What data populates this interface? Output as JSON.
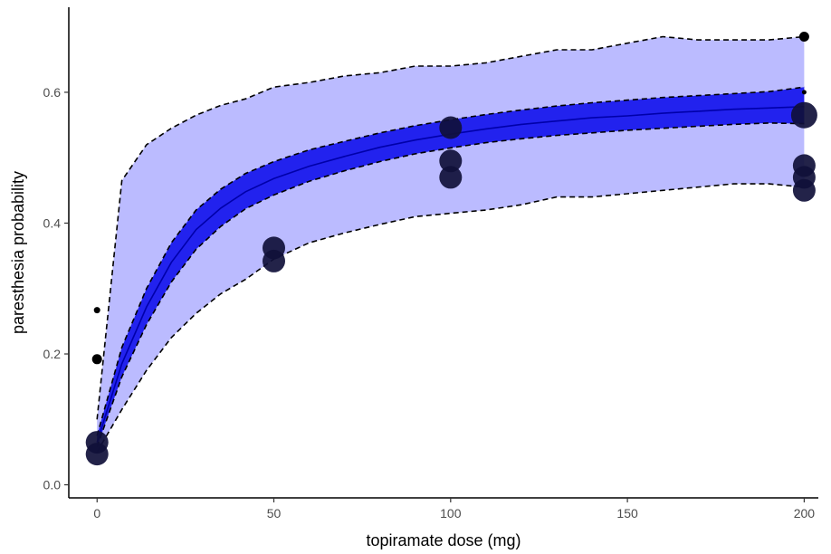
{
  "chart_data": {
    "type": "line",
    "xlabel": "topiramate dose (mg)",
    "ylabel": "paresthesia probability",
    "xlim": [
      -8,
      204
    ],
    "ylim": [
      -0.02,
      0.73
    ],
    "x_ticks": [
      0,
      50,
      100,
      150,
      200
    ],
    "y_ticks": [
      0.0,
      0.2,
      0.4,
      0.6
    ],
    "x_tick_labels": [
      "0",
      "50",
      "100",
      "150",
      "200"
    ],
    "y_tick_labels": [
      "0.0",
      "0.2",
      "0.4",
      "0.6"
    ],
    "grid": false,
    "colors": {
      "prediction_band": "#bbbbff",
      "confidence_band": "#2222ee",
      "median_line": "#0000aa",
      "band_edge": "#000000",
      "points": "#000000",
      "points_large": "#10103a"
    },
    "median": {
      "x": [
        0,
        7,
        14,
        21,
        28,
        35,
        42,
        50,
        60,
        70,
        80,
        90,
        100,
        110,
        120,
        130,
        140,
        150,
        160,
        170,
        180,
        190,
        200
      ],
      "y": [
        0.065,
        0.185,
        0.272,
        0.34,
        0.39,
        0.423,
        0.448,
        0.468,
        0.487,
        0.502,
        0.516,
        0.527,
        0.536,
        0.544,
        0.551,
        0.556,
        0.561,
        0.564,
        0.568,
        0.571,
        0.574,
        0.576,
        0.578
      ]
    },
    "confidence_band": {
      "x": [
        0,
        7,
        14,
        21,
        28,
        35,
        42,
        50,
        60,
        70,
        80,
        90,
        100,
        110,
        120,
        130,
        140,
        150,
        160,
        170,
        180,
        190,
        200
      ],
      "lower": [
        0.058,
        0.165,
        0.245,
        0.31,
        0.36,
        0.395,
        0.422,
        0.443,
        0.464,
        0.48,
        0.494,
        0.506,
        0.515,
        0.523,
        0.529,
        0.534,
        0.538,
        0.542,
        0.545,
        0.548,
        0.551,
        0.553,
        0.552
      ],
      "upper": [
        0.075,
        0.21,
        0.3,
        0.37,
        0.42,
        0.452,
        0.476,
        0.494,
        0.512,
        0.525,
        0.538,
        0.549,
        0.558,
        0.566,
        0.573,
        0.579,
        0.584,
        0.588,
        0.592,
        0.595,
        0.598,
        0.601,
        0.608
      ]
    },
    "prediction_band": {
      "x": [
        0,
        7,
        14,
        21,
        28,
        35,
        42,
        50,
        60,
        70,
        80,
        90,
        100,
        110,
        120,
        130,
        140,
        150,
        160,
        170,
        180,
        190,
        200
      ],
      "lower": [
        0.05,
        0.115,
        0.175,
        0.225,
        0.262,
        0.292,
        0.314,
        0.345,
        0.37,
        0.385,
        0.398,
        0.41,
        0.415,
        0.42,
        0.428,
        0.44,
        0.44,
        0.445,
        0.45,
        0.455,
        0.46,
        0.46,
        0.455
      ],
      "upper": [
        0.1,
        0.465,
        0.52,
        0.545,
        0.565,
        0.58,
        0.59,
        0.608,
        0.615,
        0.625,
        0.63,
        0.64,
        0.64,
        0.645,
        0.655,
        0.665,
        0.665,
        0.675,
        0.685,
        0.68,
        0.68,
        0.68,
        0.685
      ]
    },
    "observed_points": [
      {
        "x": 0,
        "y": 0.267,
        "size": "small"
      },
      {
        "x": 0,
        "y": 0.192,
        "size": "medium"
      },
      {
        "x": 0,
        "y": 0.065,
        "size": "large"
      },
      {
        "x": 0,
        "y": 0.047,
        "size": "large"
      },
      {
        "x": 50,
        "y": 0.362,
        "size": "large"
      },
      {
        "x": 50,
        "y": 0.342,
        "size": "large"
      },
      {
        "x": 100,
        "y": 0.546,
        "size": "large"
      },
      {
        "x": 100,
        "y": 0.495,
        "size": "large"
      },
      {
        "x": 100,
        "y": 0.47,
        "size": "large"
      },
      {
        "x": 200,
        "y": 0.685,
        "size": "medium"
      },
      {
        "x": 200,
        "y": 0.6,
        "size": "tiny"
      },
      {
        "x": 200,
        "y": 0.565,
        "size": "xlarge"
      },
      {
        "x": 200,
        "y": 0.488,
        "size": "large"
      },
      {
        "x": 200,
        "y": 0.47,
        "size": "large"
      },
      {
        "x": 200,
        "y": 0.45,
        "size": "large"
      }
    ]
  }
}
